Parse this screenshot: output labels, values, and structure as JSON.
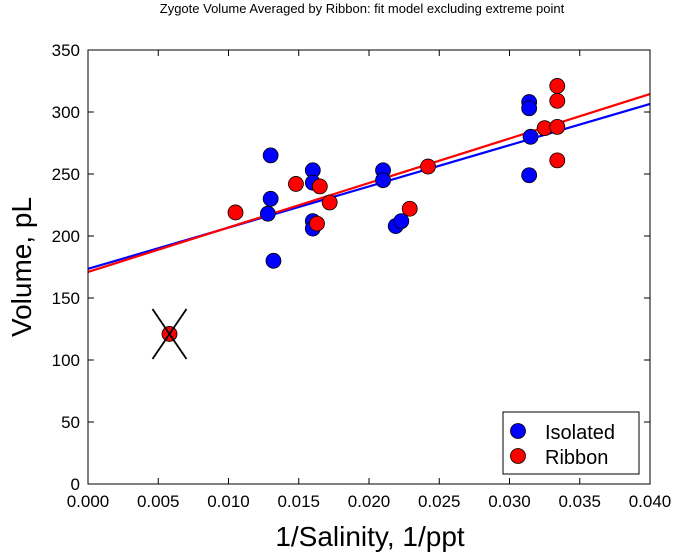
{
  "chart_data": {
    "type": "scatter",
    "title": "Zygote Volume Averaged by Ribbon: fit model excluding extreme point",
    "xlabel": "1/Salinity, 1/ppt",
    "ylabel": "Volume, pL",
    "xlim": [
      0.0,
      0.04
    ],
    "ylim": [
      0,
      350
    ],
    "x_ticks": [
      "0.000",
      "0.005",
      "0.010",
      "0.015",
      "0.020",
      "0.025",
      "0.030",
      "0.035",
      "0.040"
    ],
    "y_ticks": [
      "0",
      "50",
      "100",
      "150",
      "200",
      "250",
      "300",
      "350"
    ],
    "grid": false,
    "legend_position": "bottom-right",
    "series": [
      {
        "name": "Isolated",
        "color": "#0000ff",
        "points": [
          {
            "x": 0.0128,
            "y": 218
          },
          {
            "x": 0.013,
            "y": 230
          },
          {
            "x": 0.013,
            "y": 265
          },
          {
            "x": 0.0132,
            "y": 180
          },
          {
            "x": 0.016,
            "y": 253
          },
          {
            "x": 0.016,
            "y": 243
          },
          {
            "x": 0.016,
            "y": 212
          },
          {
            "x": 0.016,
            "y": 206
          },
          {
            "x": 0.021,
            "y": 253
          },
          {
            "x": 0.021,
            "y": 245
          },
          {
            "x": 0.0219,
            "y": 208
          },
          {
            "x": 0.0223,
            "y": 212
          },
          {
            "x": 0.0314,
            "y": 308
          },
          {
            "x": 0.0314,
            "y": 303
          },
          {
            "x": 0.0315,
            "y": 280
          },
          {
            "x": 0.0314,
            "y": 249
          }
        ],
        "fit_line": {
          "x": [
            0.0,
            0.04
          ],
          "y": [
            173.5,
            306.5
          ]
        }
      },
      {
        "name": "Ribbon",
        "color": "#ff0000",
        "points": [
          {
            "x": 0.0058,
            "y": 121
          },
          {
            "x": 0.0105,
            "y": 219
          },
          {
            "x": 0.0148,
            "y": 242
          },
          {
            "x": 0.0163,
            "y": 210
          },
          {
            "x": 0.0165,
            "y": 240
          },
          {
            "x": 0.0172,
            "y": 227
          },
          {
            "x": 0.0229,
            "y": 222
          },
          {
            "x": 0.0242,
            "y": 256
          },
          {
            "x": 0.0325,
            "y": 287
          },
          {
            "x": 0.0334,
            "y": 321
          },
          {
            "x": 0.0334,
            "y": 309
          },
          {
            "x": 0.0334,
            "y": 288
          },
          {
            "x": 0.0334,
            "y": 261
          }
        ],
        "fit_line": {
          "x": [
            0.0,
            0.04
          ],
          "y": [
            171.0,
            314.5
          ]
        }
      }
    ],
    "excluded_point": {
      "x": 0.0058,
      "y": 121
    }
  }
}
